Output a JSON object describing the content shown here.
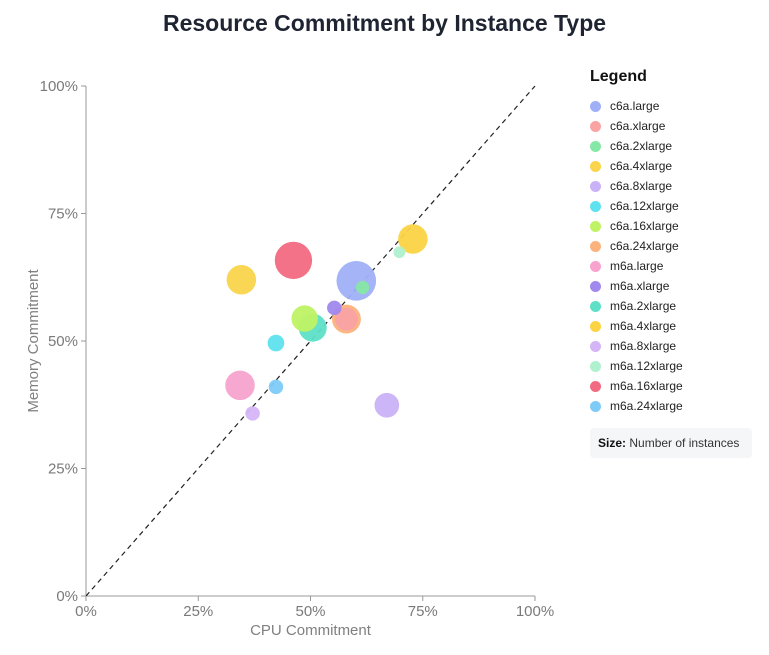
{
  "chart_data": {
    "type": "scatter",
    "title": "Resource Commitment by Instance Type",
    "xlabel": "CPU Commitment",
    "ylabel": "Memory Commitment",
    "xlim": [
      0,
      100
    ],
    "ylim": [
      0,
      100
    ],
    "x_ticks": [
      "0%",
      "25%",
      "50%",
      "75%",
      "100%"
    ],
    "y_ticks": [
      "0%",
      "25%",
      "50%",
      "75%",
      "100%"
    ],
    "reference_line": "diagonal y = x (dashed)",
    "legend_title": "Legend",
    "legend_placement": "right",
    "size_note_label": "Size:",
    "size_note_text": "Number of instances",
    "series": [
      {
        "name": "c6a.large",
        "color": "#9fb0f7",
        "x": 60.2,
        "y": 61.8,
        "size": 9
      },
      {
        "name": "c6a.xlarge",
        "color": "#f9a3a3",
        "x": 58.0,
        "y": 54.3,
        "size": 3
      },
      {
        "name": "c6a.2xlarge",
        "color": "#86e8a6",
        "x": 61.6,
        "y": 60.5,
        "size": 1
      },
      {
        "name": "c6a.4xlarge",
        "color": "#fad44c",
        "x": 34.6,
        "y": 62.0,
        "size": 5
      },
      {
        "name": "c6a.8xlarge",
        "color": "#c9b2f7",
        "x": 67.0,
        "y": 37.4,
        "size": 3.5
      },
      {
        "name": "c6a.12xlarge",
        "color": "#5fe2ef",
        "x": 42.3,
        "y": 49.6,
        "size": 1.6
      },
      {
        "name": "c6a.16xlarge",
        "color": "#bff264",
        "x": 48.7,
        "y": 54.4,
        "size": 4
      },
      {
        "name": "c6a.24xlarge",
        "color": "#fbb27c",
        "x": 58.0,
        "y": 54.3,
        "size": 4.8
      },
      {
        "name": "m6a.large",
        "color": "#f7a3cd",
        "x": 34.3,
        "y": 41.3,
        "size": 5
      },
      {
        "name": "m6a.xlarge",
        "color": "#a188ed",
        "x": 55.3,
        "y": 56.5,
        "size": 1.2
      },
      {
        "name": "m6a.2xlarge",
        "color": "#5de0c6",
        "x": 50.5,
        "y": 52.6,
        "size": 4.5
      },
      {
        "name": "m6a.4xlarge",
        "color": "#fbd343",
        "x": 72.8,
        "y": 70.0,
        "size": 5
      },
      {
        "name": "m6a.8xlarge",
        "color": "#d4b5f6",
        "x": 37.1,
        "y": 35.8,
        "size": 1.2
      },
      {
        "name": "m6a.12xlarge",
        "color": "#aff0ce",
        "x": 69.8,
        "y": 67.4,
        "size": 0.8
      },
      {
        "name": "m6a.16xlarge",
        "color": "#f26a81",
        "x": 46.2,
        "y": 65.8,
        "size": 8
      },
      {
        "name": "m6a.24xlarge",
        "color": "#7ecbf7",
        "x": 42.3,
        "y": 41.0,
        "size": 1.2
      }
    ]
  }
}
